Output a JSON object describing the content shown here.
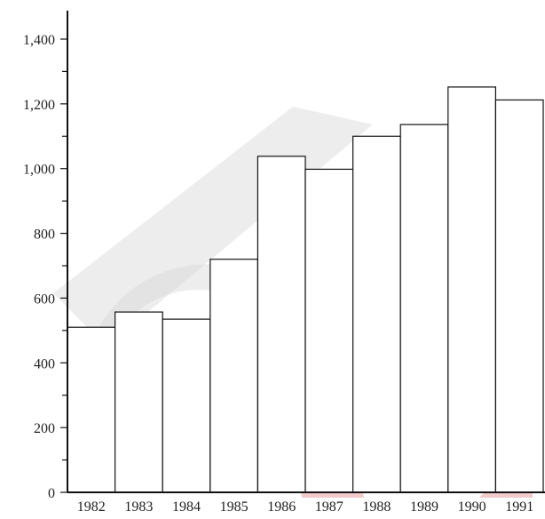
{
  "watermark": {
    "name": "logo-watermark",
    "colors": {
      "gray": "#d8d8d8",
      "red": "#e8a8a8"
    }
  },
  "chart_data": {
    "type": "bar",
    "title": "",
    "xlabel": "",
    "ylabel": "",
    "categories": [
      "1982",
      "1983",
      "1984",
      "1985",
      "1986",
      "1987",
      "1988",
      "1989",
      "1990",
      "1991"
    ],
    "values": [
      510,
      557,
      535,
      720,
      1038,
      998,
      1100,
      1136,
      1252,
      1212
    ],
    "ylim": [
      0,
      1400
    ],
    "yticks": [
      0,
      200,
      400,
      600,
      800,
      1000,
      1200,
      1400
    ],
    "ytick_labels": [
      "0",
      "200",
      "400",
      "600",
      "800",
      "1,000",
      "1,200",
      "1,400"
    ],
    "grid": false,
    "legend": "none",
    "bar_fill": "#ffffff",
    "bar_stroke": "#111111",
    "axis_color": "#111111"
  }
}
